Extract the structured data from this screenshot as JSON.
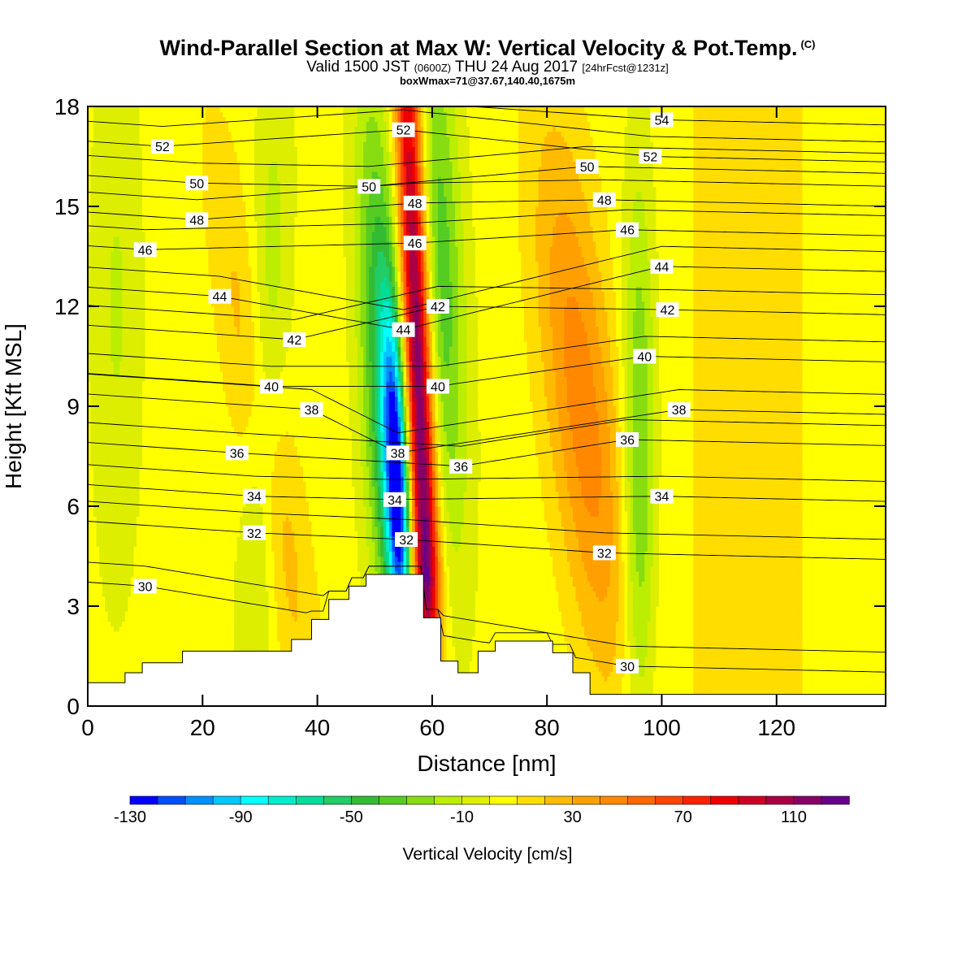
{
  "title": {
    "main": "Wind-Parallel Section at Max W: Vertical Velocity & Pot.Temp.",
    "copyright": "(C)",
    "valid_prefix": "Valid 1500 JST",
    "valid_utc": "(0600Z)",
    "valid_date": "THU 24 Aug 2017",
    "forecast": "[24hrFcst@1231z]",
    "box_info": "boxWmax=71@37.67,140.40,1675m"
  },
  "chart_data": {
    "type": "heatmap",
    "xlabel": "Distance [nm]",
    "ylabel": "Height [Kft MSL]",
    "xlim": [
      0,
      139
    ],
    "ylim": [
      0,
      18
    ],
    "x_ticks": [
      "0",
      "20",
      "40",
      "60",
      "80",
      "100",
      "120"
    ],
    "y_ticks": [
      "0",
      "3",
      "6",
      "9",
      "12",
      "15",
      "18"
    ],
    "colorbar": {
      "label": "Vertical Velocity [cm/s]",
      "tick_labels": [
        "-130",
        "-90",
        "-50",
        "-10",
        "30",
        "70",
        "110"
      ],
      "bins": [
        -130,
        -120,
        -110,
        -100,
        -90,
        -80,
        -70,
        -60,
        -50,
        -40,
        -30,
        -20,
        -10,
        0,
        10,
        20,
        30,
        40,
        50,
        60,
        70,
        80,
        90,
        100,
        110,
        120,
        130
      ],
      "colors": [
        "#0000ff",
        "#0050ff",
        "#0090ff",
        "#00c8ff",
        "#00ffff",
        "#00eecc",
        "#00dd99",
        "#22cc66",
        "#33bb33",
        "#55cc22",
        "#88dd11",
        "#bbee00",
        "#ddee00",
        "#ffff00",
        "#ffdd00",
        "#ffbb00",
        "#ffa000",
        "#ff8800",
        "#ff6600",
        "#ff4400",
        "#ff2200",
        "#ee0000",
        "#cc0022",
        "#aa0044",
        "#880066",
        "#660088"
      ]
    },
    "terrain_kft": [
      [
        0,
        0.7
      ],
      [
        6.5,
        0.7
      ],
      [
        6.5,
        1.0
      ],
      [
        9.5,
        1.0
      ],
      [
        9.5,
        1.3
      ],
      [
        16.5,
        1.3
      ],
      [
        16.5,
        1.65
      ],
      [
        35.5,
        1.65
      ],
      [
        35.5,
        2.0
      ],
      [
        39,
        2.0
      ],
      [
        39,
        2.6
      ],
      [
        42,
        2.6
      ],
      [
        42,
        3.2
      ],
      [
        45.5,
        3.2
      ],
      [
        45.5,
        3.6
      ],
      [
        48.5,
        3.6
      ],
      [
        48.5,
        3.95
      ],
      [
        58.5,
        3.95
      ],
      [
        58.5,
        2.65
      ],
      [
        61.5,
        2.65
      ],
      [
        61.5,
        1.35
      ],
      [
        64.5,
        1.35
      ],
      [
        64.5,
        1.0
      ],
      [
        68,
        1.0
      ],
      [
        68,
        1.65
      ],
      [
        71,
        1.65
      ],
      [
        71,
        1.95
      ],
      [
        77,
        1.95
      ],
      [
        77,
        1.95
      ],
      [
        81,
        1.95
      ],
      [
        81,
        1.6
      ],
      [
        84.5,
        1.6
      ],
      [
        84.5,
        1.0
      ],
      [
        87.5,
        1.0
      ],
      [
        87.5,
        0.35
      ],
      [
        139,
        0.35
      ]
    ],
    "updraft_core": {
      "x_at_0kft": 58,
      "x_at_18kft": 54,
      "peak_w": 120
    },
    "theta_isotherms": [
      {
        "value": "30",
        "labels": [
          [
            10,
            3.6
          ],
          [
            94,
            1.2
          ]
        ]
      },
      {
        "value": "32",
        "labels": [
          [
            29,
            5.2
          ],
          [
            55.5,
            5.0
          ],
          [
            90,
            4.6
          ]
        ]
      },
      {
        "value": "34",
        "labels": [
          [
            29,
            6.3
          ],
          [
            53.5,
            6.2
          ],
          [
            100,
            6.3
          ]
        ]
      },
      {
        "value": "36",
        "labels": [
          [
            26,
            7.6
          ],
          [
            65,
            7.2
          ],
          [
            94,
            8.0
          ]
        ]
      },
      {
        "value": "38",
        "labels": [
          [
            39,
            8.9
          ],
          [
            54,
            7.6
          ],
          [
            103,
            8.9
          ]
        ]
      },
      {
        "value": "40",
        "labels": [
          [
            32,
            9.6
          ],
          [
            61,
            9.6
          ],
          [
            97,
            10.5
          ]
        ]
      },
      {
        "value": "42",
        "labels": [
          [
            36,
            11.0
          ],
          [
            61,
            12.0
          ],
          [
            101,
            11.9
          ]
        ]
      },
      {
        "value": "44",
        "labels": [
          [
            23,
            12.3
          ],
          [
            55,
            11.3
          ],
          [
            100,
            13.2
          ]
        ]
      },
      {
        "value": "46",
        "labels": [
          [
            10,
            13.7
          ],
          [
            57,
            13.9
          ],
          [
            94,
            14.3
          ]
        ]
      },
      {
        "value": "48",
        "labels": [
          [
            19,
            14.6
          ],
          [
            57,
            15.1
          ],
          [
            90,
            15.2
          ]
        ]
      },
      {
        "value": "50",
        "labels": [
          [
            19,
            15.7
          ],
          [
            49,
            15.6
          ],
          [
            87,
            16.2
          ]
        ]
      },
      {
        "value": "52",
        "labels": [
          [
            13,
            16.8
          ],
          [
            55,
            17.3
          ],
          [
            98,
            16.5
          ]
        ]
      },
      {
        "value": "54",
        "labels": [
          [
            100,
            17.6
          ]
        ]
      }
    ]
  }
}
